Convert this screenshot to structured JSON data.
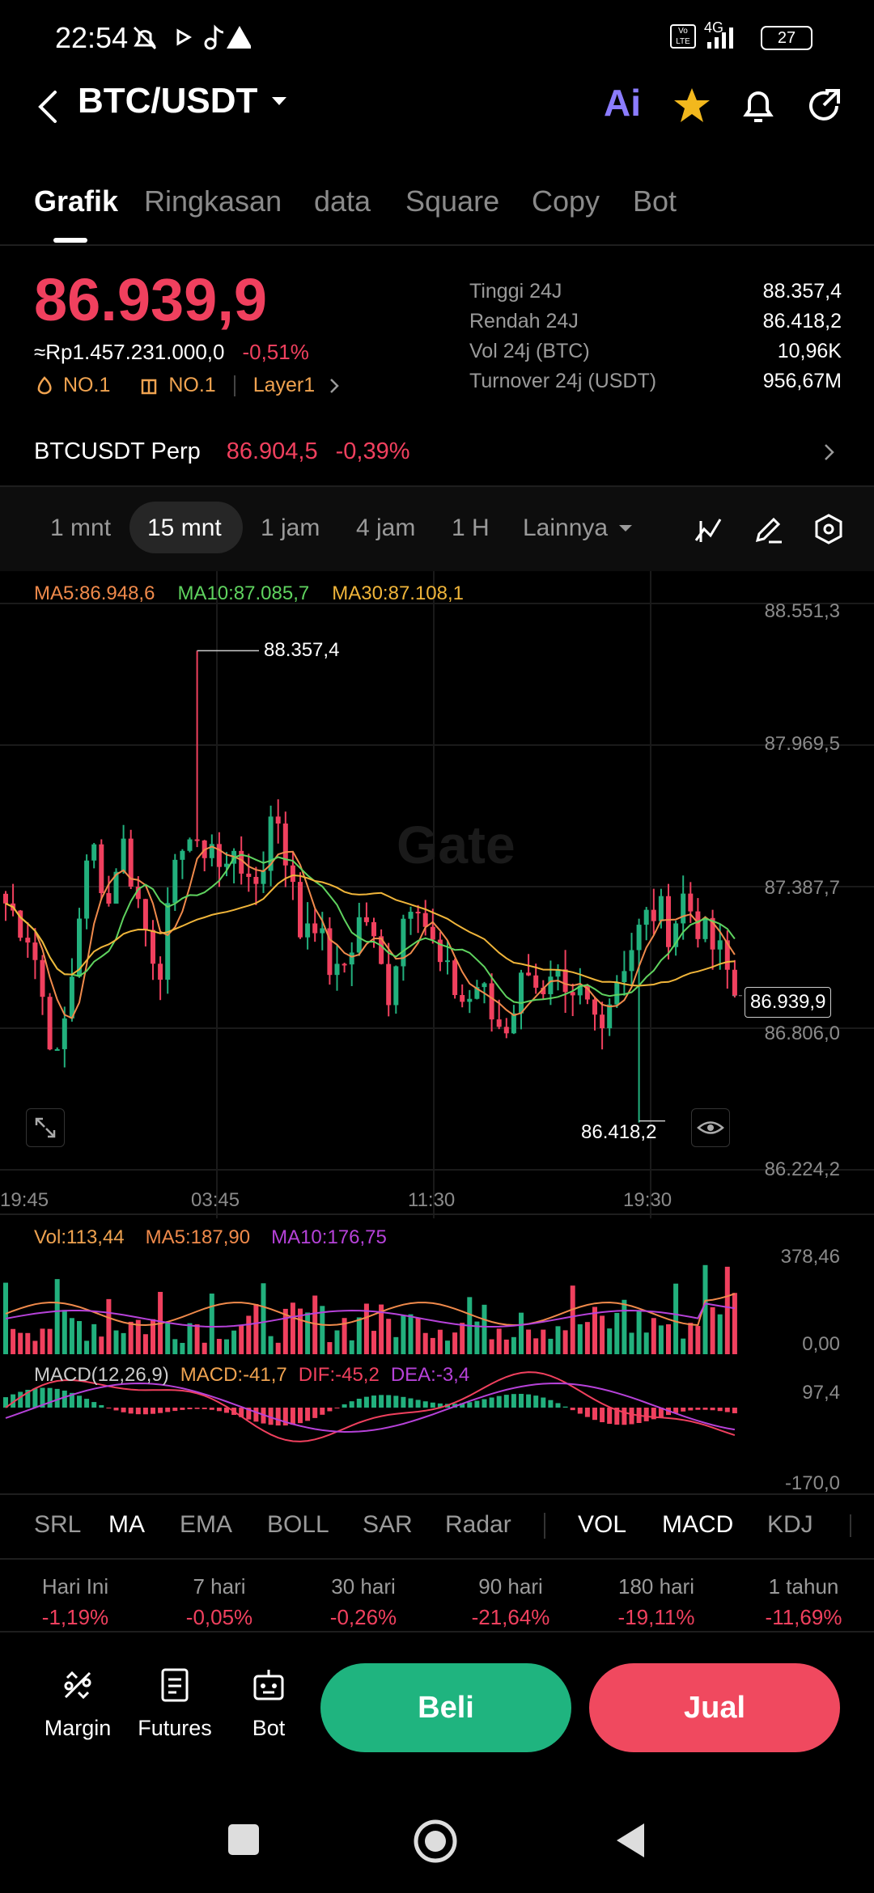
{
  "status_bar": {
    "time": "22:54",
    "network": "4G",
    "battery": "27"
  },
  "header": {
    "pair": "BTC/USDT",
    "ai_label": "Ai"
  },
  "tabs": [
    "Grafik",
    "Ringkasan",
    "data",
    "Square",
    "Copy",
    "Bot"
  ],
  "price": {
    "last": "86.939,9",
    "idr": "≈Rp1.457.231.000,0",
    "change": "-0,51%",
    "badge1": "NO.1",
    "badge2": "NO.1",
    "badge3": "Layer1"
  },
  "stats": [
    {
      "label": "Tinggi 24J",
      "value": "88.357,4"
    },
    {
      "label": "Rendah 24J",
      "value": "86.418,2"
    },
    {
      "label": "Vol 24j (BTC)",
      "value": "10,96K"
    },
    {
      "label": "Turnover 24j (USDT)",
      "value": "956,67M"
    }
  ],
  "perp": {
    "name": "BTCUSDT Perp",
    "price": "86.904,5",
    "change": "-0,39%"
  },
  "timeframes": [
    "1 mnt",
    "15 mnt",
    "1 jam",
    "4 jam",
    "1 H",
    "Lainnya"
  ],
  "ma_legend": {
    "ma5": "MA5:86.948,6",
    "ma10": "MA10:87.085,7",
    "ma30": "MA30:87.108,1"
  },
  "watermark": "Gate",
  "colors": {
    "up": "#22b07d",
    "down": "#f0405e",
    "ma5": "#f08a4b",
    "ma10": "#5fd35f",
    "ma30": "#f0b53a",
    "macd_dea": "#b642d9"
  },
  "price_axis": [
    "88.551,3",
    "87.969,5",
    "87.387,7",
    "86.806,0",
    "86.224,2"
  ],
  "time_axis": [
    "19:45",
    "03:45",
    "11:30",
    "19:30"
  ],
  "high_label": "88.357,4",
  "low_label": "86.418,2",
  "current_tag": "86.939,9",
  "volume": {
    "vol": "Vol:113,44",
    "ma5": "MA5:187,90",
    "ma10": "MA10:176,75",
    "top": "378,46",
    "bottom": "0,00"
  },
  "macd": {
    "title": "MACD(12,26,9)",
    "macd": "MACD:-41,7",
    "dif": "DIF:-45,2",
    "dea": "DEA:-3,4",
    "top": "97,4",
    "bottom": "-170,0"
  },
  "indicators": [
    "SRL",
    "MA",
    "EMA",
    "BOLL",
    "SAR",
    "Radar",
    "VOL",
    "MACD",
    "KDJ"
  ],
  "performance": [
    {
      "label": "Hari Ini",
      "value": "-1,19%"
    },
    {
      "label": "7 hari",
      "value": "-0,05%"
    },
    {
      "label": "30 hari",
      "value": "-0,26%"
    },
    {
      "label": "90 hari",
      "value": "-21,64%"
    },
    {
      "label": "180 hari",
      "value": "-19,11%"
    },
    {
      "label": "1 tahun",
      "value": "-11,69%"
    }
  ],
  "bottom_bar": {
    "margin": "Margin",
    "futures": "Futures",
    "bot": "Bot",
    "buy": "Beli",
    "sell": "Jual"
  },
  "chart_data": {
    "type": "candlestick",
    "interval": "15 mnt",
    "ylim": [
      86224.2,
      88551.3
    ],
    "close_path": [
      87320,
      87250,
      87180,
      86900,
      86650,
      86950,
      87400,
      87550,
      87300,
      87600,
      87400,
      87200,
      87050,
      87350,
      87650,
      87500,
      87600,
      87400,
      87600,
      87350,
      87450,
      87750,
      87500,
      87200,
      87300,
      87100,
      87000,
      87150,
      87300,
      87100,
      86950,
      87250,
      87400,
      87200,
      87050,
      86980,
      86900,
      87000,
      86850,
      86800,
      86950,
      87100,
      86900,
      87000,
      86850,
      86950,
      86850,
      86900,
      87050,
      87150,
      87250,
      87300,
      87200,
      87350,
      87250,
      87150,
      87100,
      86940
    ],
    "high": 88357.4,
    "low": 86418.2,
    "last": 86939.9
  }
}
